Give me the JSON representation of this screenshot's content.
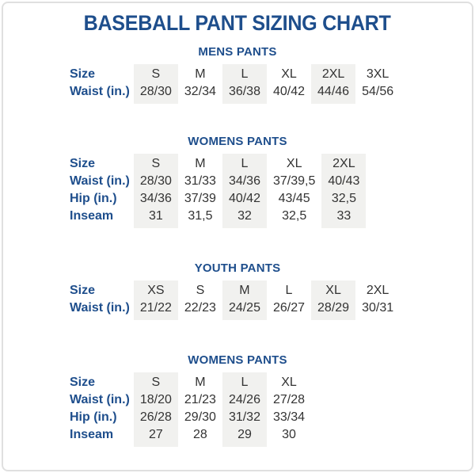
{
  "page": {
    "title": "BASEBALL PANT SIZING CHART",
    "colors": {
      "accent_blue": "#1e4e8c",
      "column_stripe": "#f1f1ef",
      "body_text": "#333333",
      "frame_border": "#e0e0e0"
    }
  },
  "sections": [
    {
      "heading": "MENS PANTS",
      "rows": [
        {
          "label": "Size",
          "values": [
            "S",
            "M",
            "L",
            "XL",
            "2XL",
            "3XL"
          ]
        },
        {
          "label": "Waist (in.)",
          "values": [
            "28/30",
            "32/34",
            "36/38",
            "40/42",
            "44/46",
            "54/56"
          ]
        }
      ]
    },
    {
      "heading": "WOMENS PANTS",
      "rows": [
        {
          "label": "Size",
          "values": [
            "S",
            "M",
            "L",
            "XL",
            "2XL"
          ]
        },
        {
          "label": "Waist (in.)",
          "values": [
            "28/30",
            "31/33",
            "34/36",
            "37/39,5",
            "40/43"
          ]
        },
        {
          "label": "Hip (in.)",
          "values": [
            "34/36",
            "37/39",
            "40/42",
            "43/45",
            "32,5"
          ]
        },
        {
          "label": "Inseam",
          "values": [
            "31",
            "31,5",
            "32",
            "32,5",
            "33"
          ]
        }
      ]
    },
    {
      "heading": "YOUTH PANTS",
      "rows": [
        {
          "label": "Size",
          "values": [
            "XS",
            "S",
            "M",
            "L",
            "XL",
            "2XL"
          ]
        },
        {
          "label": "Waist (in.)",
          "values": [
            "21/22",
            "22/23",
            "24/25",
            "26/27",
            "28/29",
            "30/31"
          ]
        }
      ]
    },
    {
      "heading": "WOMENS PANTS",
      "rows": [
        {
          "label": "Size",
          "values": [
            "S",
            "M",
            "L",
            "XL"
          ]
        },
        {
          "label": "Waist (in.)",
          "values": [
            "18/20",
            "21/23",
            "24/26",
            "27/28"
          ]
        },
        {
          "label": "Hip (in.)",
          "values": [
            "26/28",
            "29/30",
            "31/32",
            "33/34"
          ]
        },
        {
          "label": "Inseam",
          "values": [
            "27",
            "28",
            "29",
            "30"
          ]
        }
      ]
    }
  ]
}
